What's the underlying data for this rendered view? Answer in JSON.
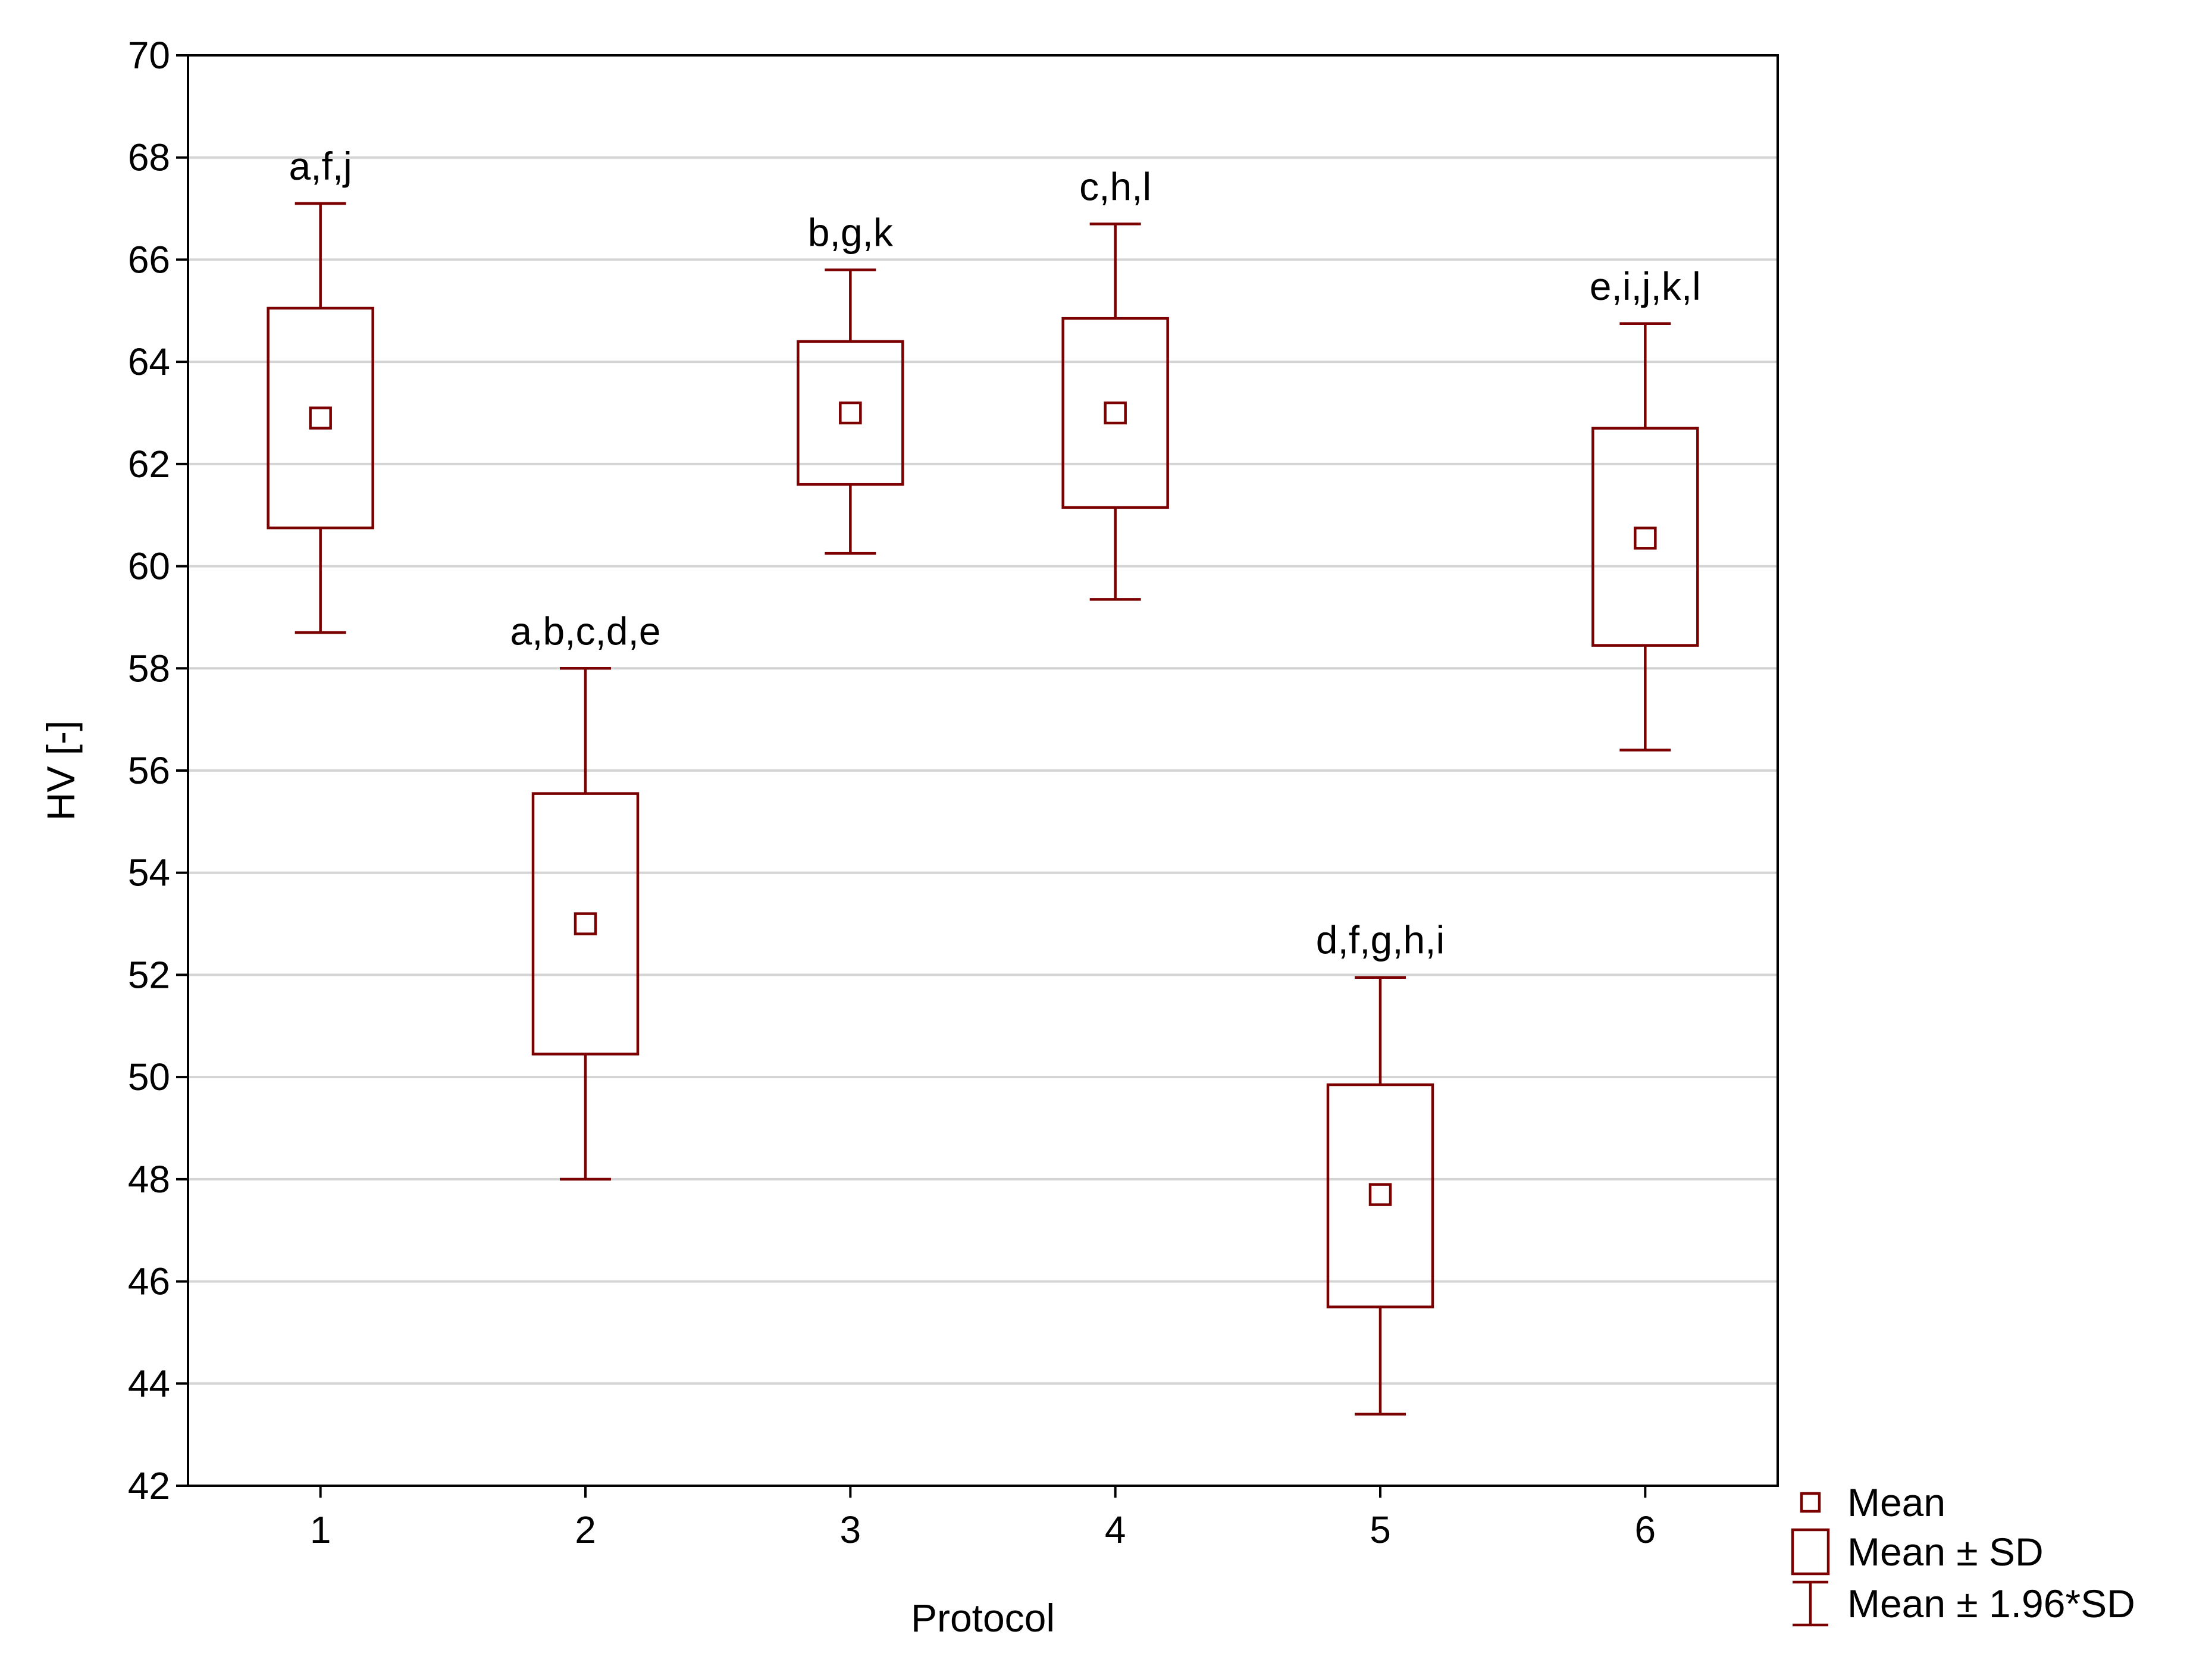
{
  "chart_data": {
    "type": "box",
    "title": "",
    "xlabel": "Protocol",
    "ylabel": "HV [-]",
    "ylim": [
      42,
      70
    ],
    "yticks": [
      42,
      44,
      46,
      48,
      50,
      52,
      54,
      56,
      58,
      60,
      62,
      64,
      66,
      68,
      70
    ],
    "categories": [
      "1",
      "2",
      "3",
      "4",
      "5",
      "6"
    ],
    "grid": "horizontal",
    "legend_position": "bottom-right",
    "series": [
      {
        "category": "1",
        "mean": 62.9,
        "sd_low": 60.75,
        "sd_high": 65.05,
        "ci_low": 58.7,
        "ci_high": 67.1,
        "annotation": "a,f,j"
      },
      {
        "category": "2",
        "mean": 53.0,
        "sd_low": 50.45,
        "sd_high": 55.55,
        "ci_low": 48.0,
        "ci_high": 58.0,
        "annotation": "a,b,c,d,e"
      },
      {
        "category": "3",
        "mean": 63.0,
        "sd_low": 61.6,
        "sd_high": 64.4,
        "ci_low": 60.25,
        "ci_high": 65.8,
        "annotation": "b,g,k"
      },
      {
        "category": "4",
        "mean": 63.0,
        "sd_low": 61.15,
        "sd_high": 64.85,
        "ci_low": 59.35,
        "ci_high": 66.7,
        "annotation": "c,h,l"
      },
      {
        "category": "5",
        "mean": 47.7,
        "sd_low": 45.5,
        "sd_high": 49.85,
        "ci_low": 43.4,
        "ci_high": 51.95,
        "annotation": "d,f,g,h,i"
      },
      {
        "category": "6",
        "mean": 60.55,
        "sd_low": 58.45,
        "sd_high": 62.7,
        "ci_low": 56.4,
        "ci_high": 64.75,
        "annotation": "e,i,j,k,l"
      }
    ],
    "legend": [
      {
        "symbol": "mean-marker",
        "label": "Mean"
      },
      {
        "symbol": "sd-box",
        "label": "Mean ± SD"
      },
      {
        "symbol": "ci-whisker",
        "label": "Mean ± 1.96*SD"
      }
    ],
    "colors": {
      "series": "#7b0000",
      "grid": "#d4d4d4",
      "axis": "#000000"
    }
  }
}
